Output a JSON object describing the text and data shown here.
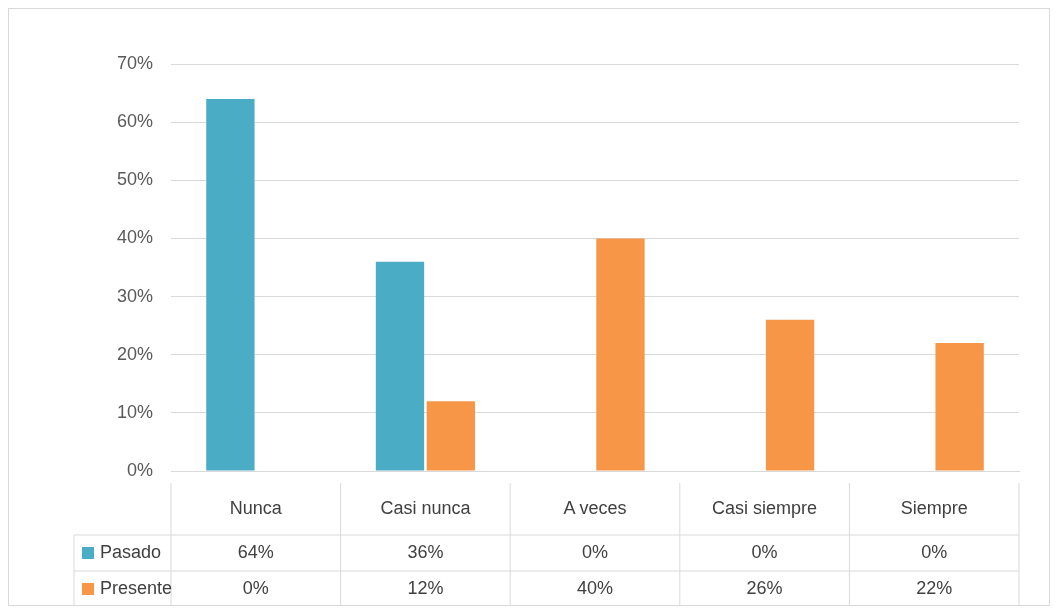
{
  "chart_data": {
    "type": "bar",
    "categories": [
      "Nunca",
      "Casi nunca",
      "A veces",
      "Casi siempre",
      "Siempre"
    ],
    "series": [
      {
        "name": "Pasado",
        "color": "#4bacc6",
        "values": [
          64,
          36,
          0,
          0,
          0
        ],
        "value_labels": [
          "64%",
          "36%",
          "0%",
          "0%",
          "0%"
        ]
      },
      {
        "name": "Presente",
        "color": "#f79646",
        "values": [
          0,
          12,
          40,
          26,
          22
        ],
        "value_labels": [
          "0%",
          "12%",
          "40%",
          "26%",
          "22%"
        ]
      }
    ],
    "ylim": [
      0,
      70
    ],
    "yticks": [
      {
        "value": 0,
        "label": "0%"
      },
      {
        "value": 10,
        "label": "10%"
      },
      {
        "value": 20,
        "label": "20%"
      },
      {
        "value": 30,
        "label": "30%"
      },
      {
        "value": 40,
        "label": "40%"
      },
      {
        "value": 50,
        "label": "50%"
      },
      {
        "value": 60,
        "label": "60%"
      },
      {
        "value": 70,
        "label": "70%"
      }
    ],
    "grid": "y",
    "legend": "bottom"
  }
}
